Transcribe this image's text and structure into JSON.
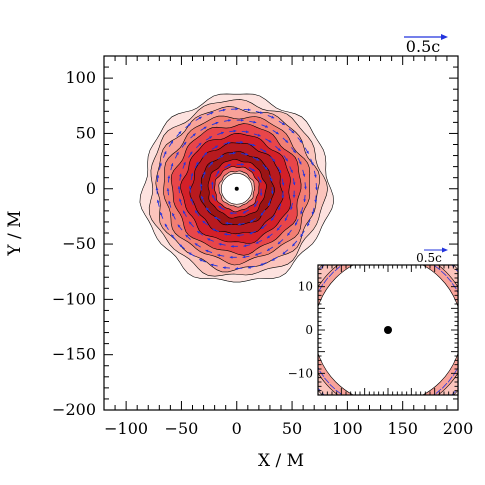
{
  "chart_data": {
    "type": "contour",
    "xlabel": "X / M",
    "ylabel": "Y / M",
    "xlim": [
      -120,
      200
    ],
    "ylim": [
      -200,
      120
    ],
    "xticks": [
      -100,
      -50,
      0,
      50,
      100,
      150,
      200
    ],
    "yticks": [
      -200,
      -150,
      -100,
      -50,
      0,
      50,
      100
    ],
    "xtick_labels": [
      "−100",
      "−50",
      "0",
      "50",
      "100",
      "150",
      "200"
    ],
    "ytick_labels": [
      "−200",
      "−150",
      "−100",
      "−50",
      "0",
      "50",
      "100"
    ],
    "velocity_key_label": "0.5c",
    "disk": {
      "center": [
        0,
        0
      ],
      "inner_hole_radius": 14,
      "outer_radius": 85,
      "contour_radii": [
        85,
        79,
        73,
        66,
        58,
        49,
        41,
        33,
        26,
        20,
        16
      ],
      "contour_colors": [
        "#fde2df",
        "#fbc4bc",
        "#f8a39a",
        "#f27f73",
        "#e8464a",
        "#d42028",
        "#b81a1f",
        "#9c1414",
        "#d42028",
        "#f06b68",
        "#fbc4bc"
      ]
    },
    "black_hole": {
      "x": 0,
      "y": 0
    },
    "inset": {
      "xlim": [
        -15,
        15
      ],
      "ylim": [
        -15,
        15
      ],
      "xticks": [
        -10,
        0,
        10
      ],
      "yticks": [
        -10,
        0,
        10
      ],
      "ytick_labels": [
        "−10",
        "0",
        "10"
      ],
      "velocity_key_label": "0.5c",
      "black_hole": {
        "x": 0,
        "y": 0
      }
    }
  },
  "colors": {
    "velocity_arrow": "#2233dd",
    "contour_line": "#000000",
    "background": "#ffffff"
  }
}
